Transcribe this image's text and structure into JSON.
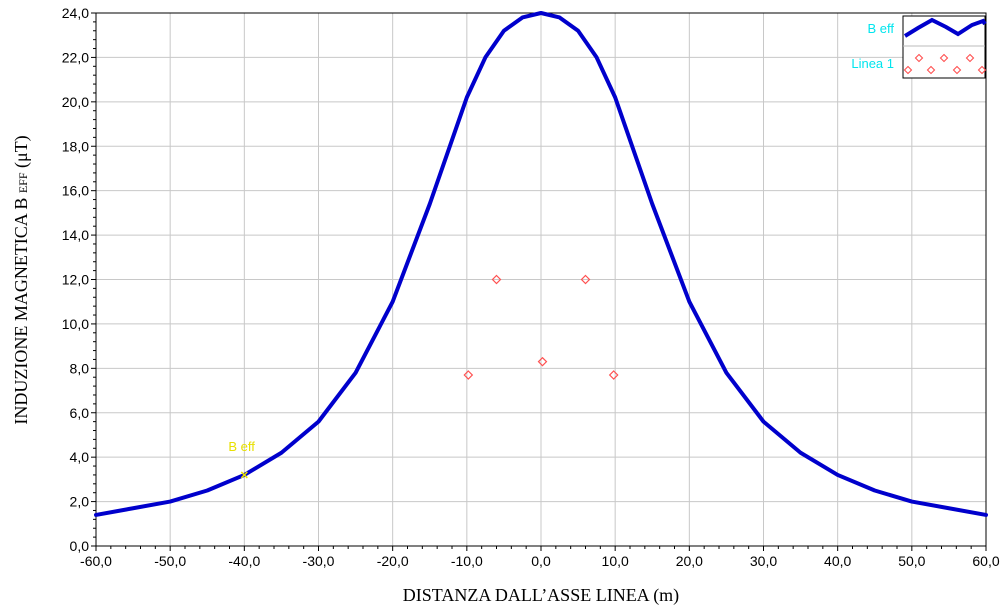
{
  "chart_data": {
    "type": "line",
    "xlabel": "DISTANZA DALL’ASSE LINEA (m)",
    "ylabel_prefix": "INDUZIONE MAGNETICA B",
    "ylabel_sub": "EFF",
    "ylabel_suffix": "(μT)",
    "xlim": [
      -60,
      60
    ],
    "ylim": [
      0,
      24
    ],
    "grid": true,
    "legend_position": "top-right",
    "x_ticks": [
      "-60,0",
      "-50,0",
      "-40,0",
      "-30,0",
      "-20,0",
      "-10,0",
      "0,0",
      "10,0",
      "20,0",
      "30,0",
      "40,0",
      "50,0",
      "60,0"
    ],
    "y_ticks": [
      "0,0",
      "2,0",
      "4,0",
      "6,0",
      "8,0",
      "10,0",
      "12,0",
      "14,0",
      "16,0",
      "18,0",
      "20,0",
      "22,0",
      "24,0"
    ],
    "series": [
      {
        "name": "B eff",
        "style": "line",
        "color": "#0000cc",
        "x": [
          -60,
          -55,
          -50,
          -45,
          -40,
          -35,
          -30,
          -25,
          -20,
          -15,
          -10,
          -7.5,
          -5,
          -2.5,
          0,
          2.5,
          5,
          7.5,
          10,
          15,
          20,
          25,
          30,
          35,
          40,
          45,
          50,
          55,
          60
        ],
        "y": [
          1.4,
          1.7,
          2.0,
          2.5,
          3.2,
          4.2,
          5.6,
          7.8,
          11.0,
          15.4,
          20.2,
          22.0,
          23.2,
          23.8,
          24.0,
          23.8,
          23.2,
          22.0,
          20.2,
          15.4,
          11.0,
          7.8,
          5.6,
          4.2,
          3.2,
          2.5,
          2.0,
          1.7,
          1.4
        ]
      },
      {
        "name": "Linea 1",
        "style": "markers",
        "color": "#ff5050",
        "x": [
          -6,
          6,
          -9.8,
          0.2,
          9.8
        ],
        "y": [
          12.0,
          12.0,
          7.7,
          8.3,
          7.7
        ]
      }
    ],
    "annotation": {
      "text": "B eff",
      "x": -40,
      "y": 3.2
    }
  }
}
